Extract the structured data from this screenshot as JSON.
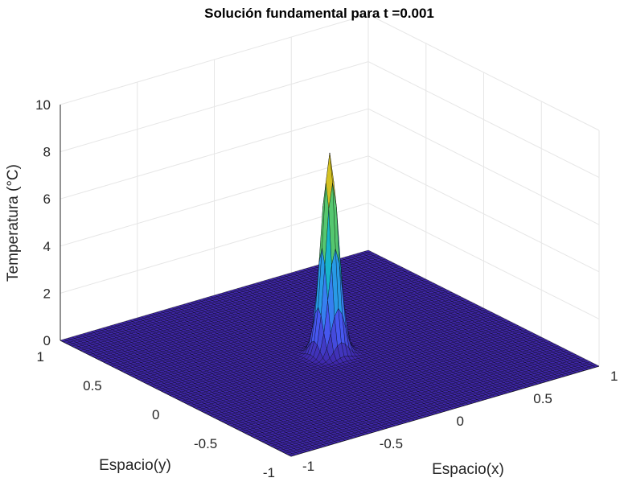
{
  "chart_data": {
    "type": "surface",
    "title": "Solución fundamental para t =0.001",
    "xlabel": "Espacio(x)",
    "ylabel": "Espacio(y)",
    "zlabel": "Temperatura (°C)",
    "xlim": [
      -1,
      1
    ],
    "ylim": [
      -1,
      1
    ],
    "zlim": [
      0,
      10
    ],
    "xticks": [
      "-1",
      "-0.5",
      "0",
      "0.5",
      "1"
    ],
    "yticks": [
      "-1",
      "-0.5",
      "0",
      "0.5",
      "1"
    ],
    "zticks": [
      "0",
      "2",
      "4",
      "6",
      "8",
      "10"
    ],
    "t": 0.001,
    "peak": {
      "x": 0,
      "y": 0,
      "z": 8.5
    },
    "grid": true,
    "colormap": "parula",
    "colors": {
      "low": "#3e26a8",
      "mid": "#2ab3d4",
      "high": "#f9d325",
      "edge": "#000000",
      "gridline": "#e6e6e6"
    }
  }
}
